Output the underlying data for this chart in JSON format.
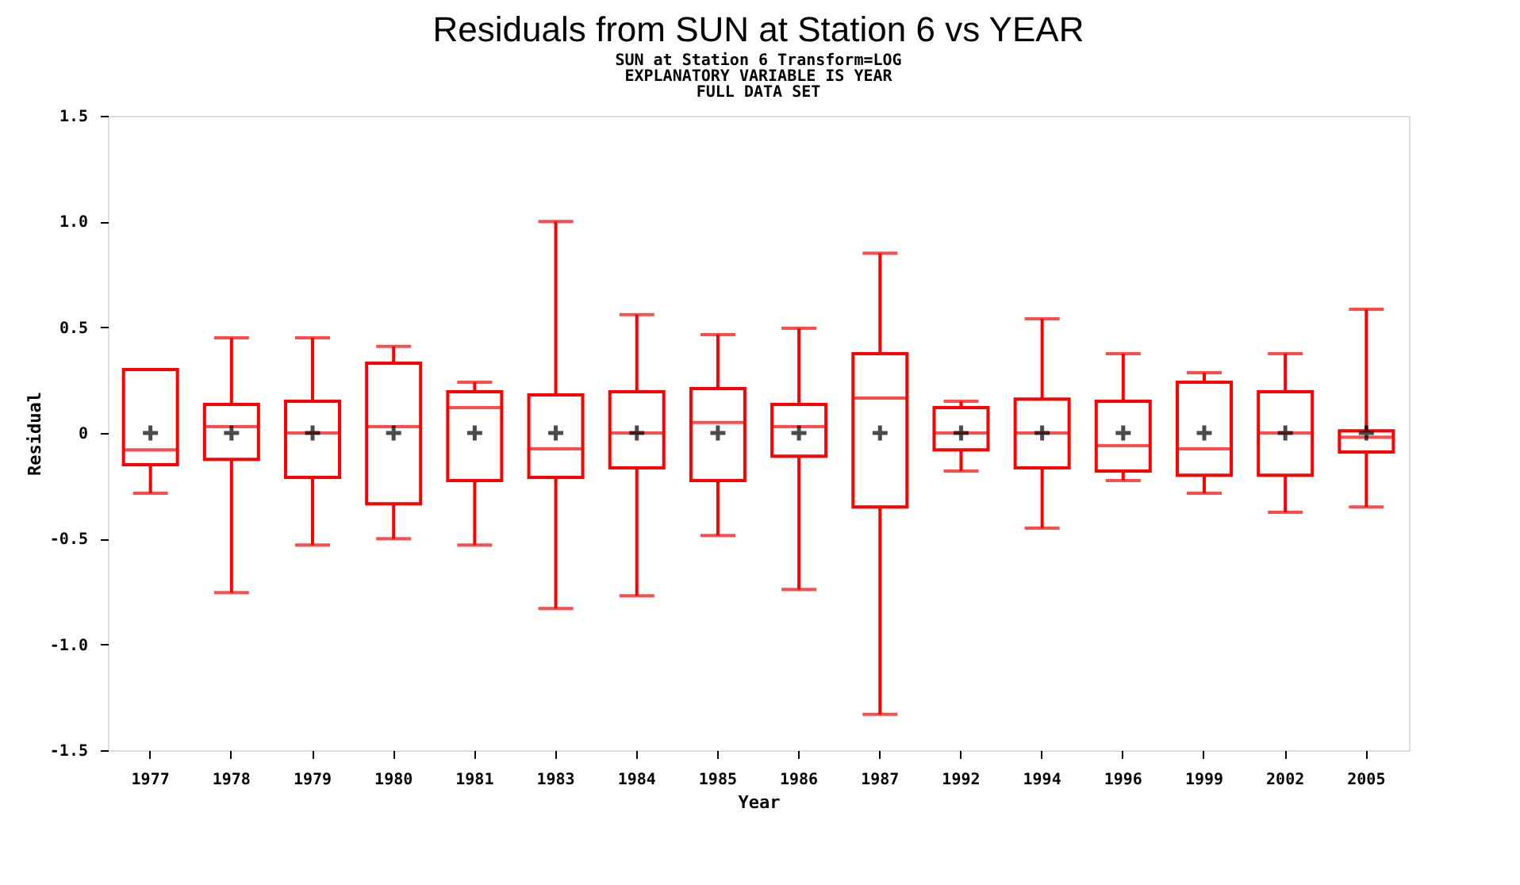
{
  "chart_data": {
    "type": "box",
    "title": "Residuals from SUN at Station 6 vs YEAR",
    "subtitle": "SUN at Station 6 Transform=LOG\nEXPLANATORY VARIABLE IS YEAR\nFULL DATA SET",
    "xlabel": "Year",
    "ylabel": "Residual",
    "categories": [
      "1977",
      "1978",
      "1979",
      "1980",
      "1981",
      "1983",
      "1984",
      "1985",
      "1986",
      "1987",
      "1992",
      "1994",
      "1996",
      "1999",
      "2002",
      "2005"
    ],
    "series": [
      {
        "color": "#ff0000",
        "boxes": [
          {
            "low": -0.285,
            "q1": -0.15,
            "median": -0.08,
            "q3": 0.3,
            "high": 0.3,
            "mean": 0
          },
          {
            "low": -0.755,
            "q1": -0.125,
            "median": 0.03,
            "q3": 0.135,
            "high": 0.45,
            "mean": 0
          },
          {
            "low": -0.53,
            "q1": -0.21,
            "median": 0,
            "q3": 0.15,
            "high": 0.45,
            "mean": 0
          },
          {
            "low": -0.5,
            "q1": -0.335,
            "median": 0.03,
            "q3": 0.33,
            "high": 0.41,
            "mean": 0
          },
          {
            "low": -0.53,
            "q1": -0.225,
            "median": 0.12,
            "q3": 0.195,
            "high": 0.24,
            "mean": 0
          },
          {
            "low": -0.83,
            "q1": -0.21,
            "median": -0.075,
            "q3": 0.18,
            "high": 1.0,
            "mean": 0
          },
          {
            "low": -0.77,
            "q1": -0.165,
            "median": 0,
            "q3": 0.195,
            "high": 0.56,
            "mean": 0
          },
          {
            "low": -0.485,
            "q1": -0.225,
            "median": 0.05,
            "q3": 0.21,
            "high": 0.465,
            "mean": 0
          },
          {
            "low": -0.74,
            "q1": -0.11,
            "median": 0.03,
            "q3": 0.135,
            "high": 0.495,
            "mean": 0
          },
          {
            "low": -1.33,
            "q1": -0.35,
            "median": 0.165,
            "q3": 0.375,
            "high": 0.85,
            "mean": 0
          },
          {
            "low": -0.18,
            "q1": -0.08,
            "median": 0,
            "q3": 0.12,
            "high": 0.15,
            "mean": 0
          },
          {
            "low": -0.45,
            "q1": -0.165,
            "median": 0,
            "q3": 0.16,
            "high": 0.54,
            "mean": 0
          },
          {
            "low": -0.225,
            "q1": -0.18,
            "median": -0.06,
            "q3": 0.15,
            "high": 0.375,
            "mean": 0
          },
          {
            "low": -0.285,
            "q1": -0.2,
            "median": -0.075,
            "q3": 0.24,
            "high": 0.285,
            "mean": 0
          },
          {
            "low": -0.375,
            "q1": -0.2,
            "median": 0,
            "q3": 0.195,
            "high": 0.375,
            "mean": 0
          },
          {
            "low": -0.35,
            "q1": -0.09,
            "median": -0.02,
            "q3": 0.01,
            "high": 0.585,
            "mean": 0
          }
        ]
      }
    ],
    "ylim": [
      -1.5,
      1.5
    ],
    "yticks": [
      -1.5,
      {
        "value": -1,
        "label": "-1.0"
      },
      -0.5,
      0,
      0.5,
      {
        "value": 1,
        "label": "1.0"
      },
      1.5
    ],
    "grid": false
  }
}
